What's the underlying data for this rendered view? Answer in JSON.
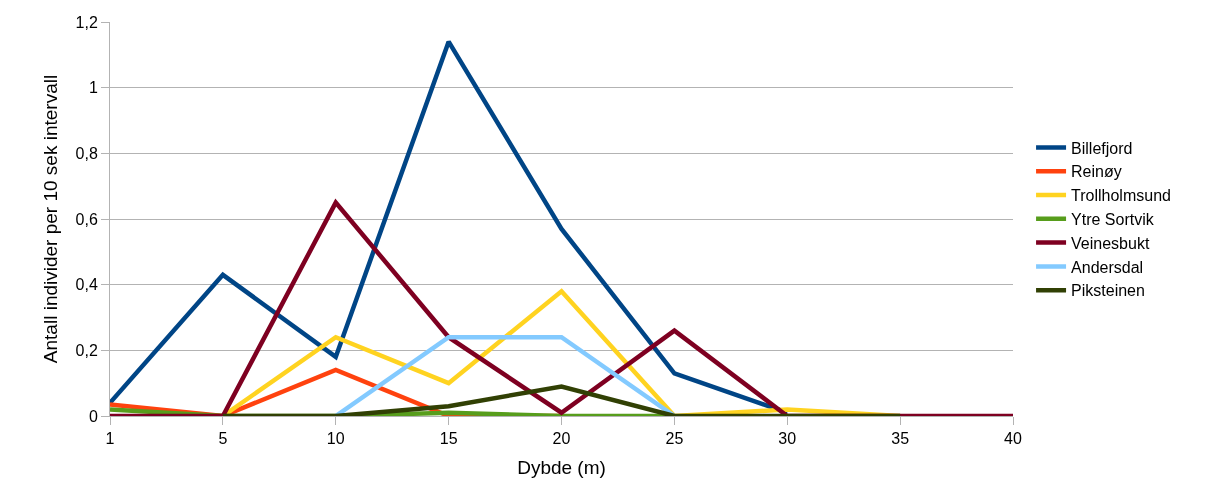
{
  "chart_data": {
    "type": "line",
    "xlabel": "Dybde (m)",
    "ylabel": "Antall individer per 10 sek intervall",
    "categories": [
      "1",
      "5",
      "10",
      "15",
      "20",
      "25",
      "30",
      "35",
      "40"
    ],
    "series": [
      {
        "name": "Billefjord",
        "color": "#004586",
        "values": [
          0.04,
          0.43,
          0.18,
          1.14,
          0.57,
          0.13,
          0.01,
          null,
          null
        ]
      },
      {
        "name": "Reinøy",
        "color": "#ff420e",
        "values": [
          0.035,
          0,
          0.14,
          0,
          0,
          null,
          null,
          null,
          null
        ]
      },
      {
        "name": "Trollholmsund",
        "color": "#ffd320",
        "values": [
          null,
          0,
          0.24,
          0.1,
          0.38,
          0,
          0.02,
          0,
          null
        ]
      },
      {
        "name": "Ytre Sortvik",
        "color": "#579d1c",
        "values": [
          0.02,
          0,
          0,
          0.01,
          0,
          0,
          null,
          null,
          null
        ]
      },
      {
        "name": "Veinesbukt",
        "color": "#7e0021",
        "values": [
          0,
          0,
          0.65,
          0.24,
          0.01,
          0.26,
          0,
          0,
          0
        ]
      },
      {
        "name": "Andersdal",
        "color": "#83caff",
        "values": [
          null,
          null,
          0,
          0.24,
          0.24,
          0,
          null,
          null,
          null
        ]
      },
      {
        "name": "Piksteinen",
        "color": "#314004",
        "values": [
          null,
          0,
          0,
          0.03,
          0.09,
          0,
          0,
          0,
          null
        ]
      }
    ],
    "ylim": [
      0,
      1.2
    ],
    "yticks": [
      {
        "value": 0,
        "label": "0"
      },
      {
        "value": 0.2,
        "label": "0,2"
      },
      {
        "value": 0.4,
        "label": "0,4"
      },
      {
        "value": 0.6,
        "label": "0,6"
      },
      {
        "value": 0.8,
        "label": "0,8"
      },
      {
        "value": 1,
        "label": "1"
      },
      {
        "value": 1.2,
        "label": "1,2"
      }
    ],
    "grid": "y",
    "legend": "right",
    "marker": "none",
    "line_style": "solid"
  }
}
